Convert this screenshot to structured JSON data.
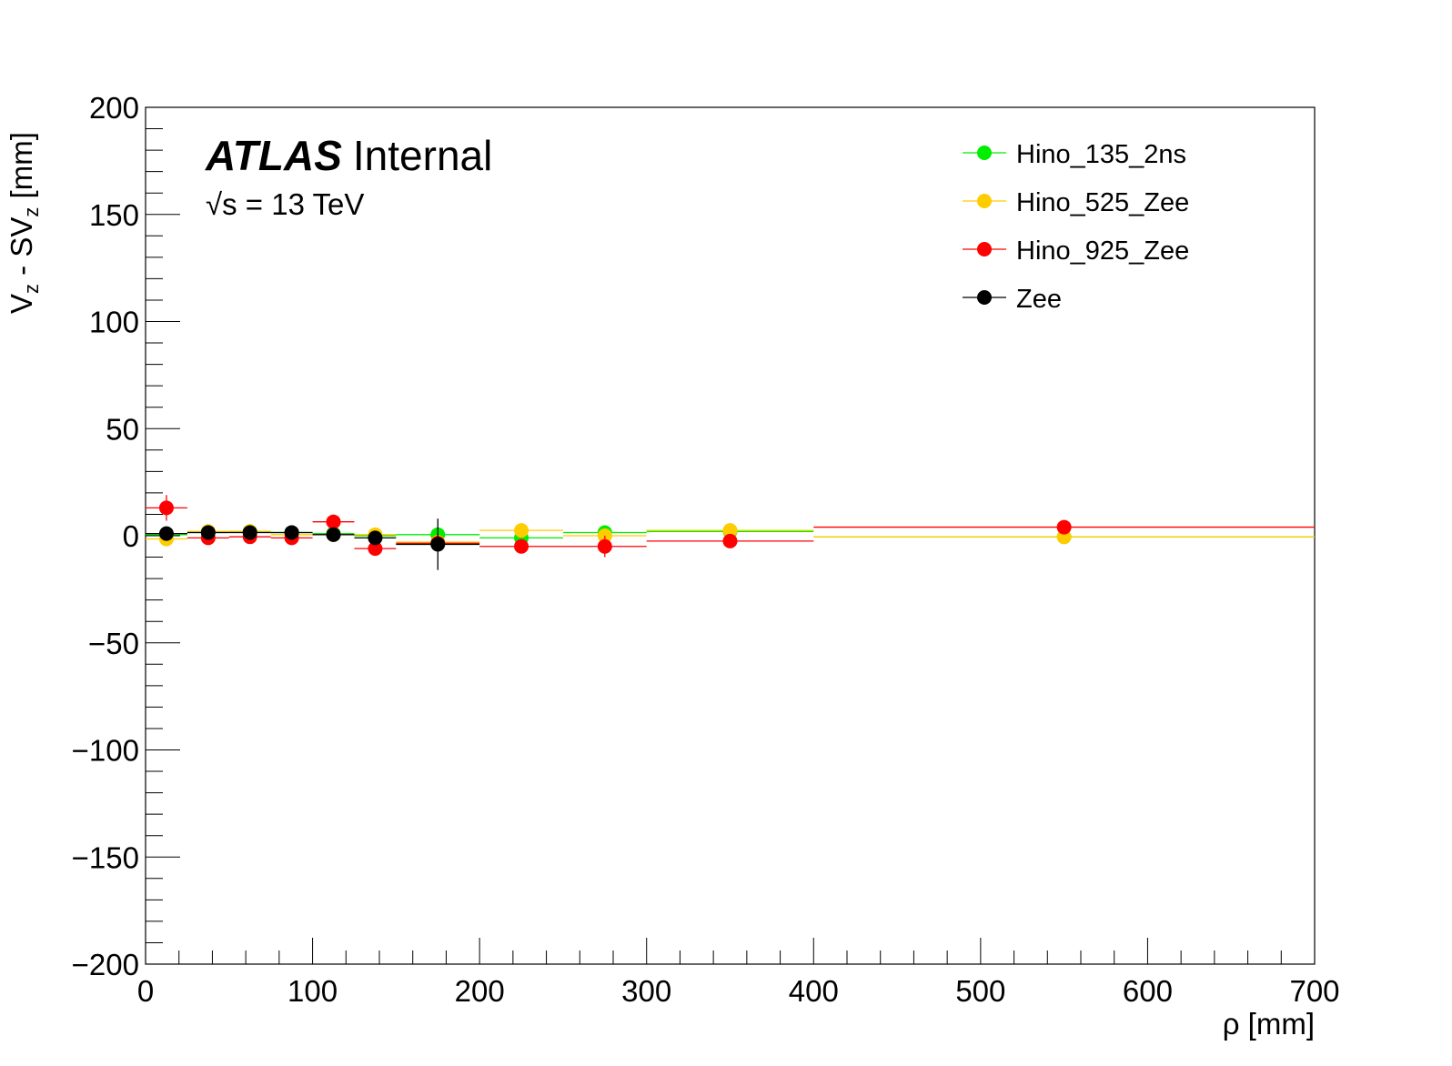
{
  "chart_data": {
    "type": "scatter",
    "xlabel": "ρ [mm]",
    "ylabel": {
      "V": "V",
      "sub1": "z",
      "mid": " - SV",
      "sub2": "z",
      "unit": " [mm]"
    },
    "xlim": [
      0,
      700
    ],
    "ylim": [
      -200,
      200
    ],
    "x_ticks": [
      "0",
      "100",
      "200",
      "300",
      "400",
      "500",
      "600",
      "700"
    ],
    "y_ticks": [
      "200",
      "150",
      "100",
      "50",
      "0",
      "−50",
      "−100",
      "−150",
      "−200"
    ],
    "annotation": {
      "experiment": "ATLAS",
      "status": "Internal",
      "energy_root": "√",
      "energy": "s = 13 TeV"
    },
    "legend_position": "top-right",
    "bin_edges": [
      0,
      25,
      50,
      75,
      100,
      125,
      150,
      200,
      250,
      300,
      400,
      700
    ],
    "x": [
      12.5,
      37.5,
      62.5,
      87.5,
      112.5,
      137.5,
      175,
      225,
      275,
      350,
      550
    ],
    "series": [
      {
        "name": "Hino_135_2ns",
        "color": "#00ee00",
        "values": [
          0.5,
          1.5,
          2,
          1.5,
          1,
          0,
          0.5,
          -1,
          1.5,
          2,
          -0.5
        ],
        "errors": [
          1,
          1,
          1,
          1,
          1,
          1,
          1,
          1,
          1,
          1,
          1
        ]
      },
      {
        "name": "Hino_525_Zee",
        "color": "#ffcc00",
        "values": [
          -1.5,
          2,
          2,
          0.5,
          0.5,
          0.5,
          -3,
          2.5,
          0,
          2.5,
          -0.5
        ],
        "errors": [
          2,
          1,
          1,
          1,
          1,
          1,
          2,
          1,
          1,
          1,
          1
        ]
      },
      {
        "name": "Hino_925_Zee",
        "color": "#ff0000",
        "values": [
          13,
          -1,
          -0.5,
          -1,
          6.5,
          -6,
          -3.5,
          -5,
          -5,
          -2.5,
          4
        ],
        "errors": [
          6,
          2,
          2,
          2,
          2,
          3,
          3,
          2,
          5,
          3,
          2
        ]
      },
      {
        "name": "Zee",
        "color": "#000000",
        "values": [
          1,
          1.5,
          1.5,
          1.5,
          0.5,
          -1,
          -4,
          null,
          null,
          null,
          null
        ],
        "errors": [
          1,
          1,
          1,
          1,
          1,
          2,
          12,
          0,
          0,
          0,
          0
        ]
      }
    ]
  }
}
